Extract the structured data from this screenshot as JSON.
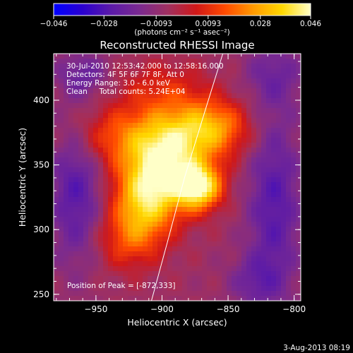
{
  "chart_data": {
    "type": "heatmap",
    "title": "Reconstructed RHESSI Image",
    "colorbar": {
      "ticks": [
        "−0.046",
        "−0.028",
        "−0.0093",
        "0.0093",
        "0.028",
        "0.046"
      ],
      "range": [
        -0.046,
        0.046
      ],
      "unit_label": "(photons cm⁻² s⁻¹ asec⁻²)",
      "colormap": [
        "#0000ff",
        "#2a00d0",
        "#5b1aa8",
        "#7a2a90",
        "#a03060",
        "#d01818",
        "#ff4a00",
        "#ff9a00",
        "#ffd800",
        "#ffffc8"
      ]
    },
    "xlabel": "Heliocentric X (arcsec)",
    "ylabel": "Heliocentric Y (arcsec)",
    "xlim": [
      -982,
      -795
    ],
    "ylim": [
      245,
      436
    ],
    "x_ticks": [
      {
        "value": -950,
        "label": "−950"
      },
      {
        "value": -900,
        "label": "−900"
      },
      {
        "value": -850,
        "label": "−850"
      },
      {
        "value": -800,
        "label": "−800"
      }
    ],
    "y_ticks": [
      {
        "value": 250,
        "label": "250"
      },
      {
        "value": 300,
        "label": "300"
      },
      {
        "value": 350,
        "label": "350"
      },
      {
        "value": 400,
        "label": "400"
      }
    ],
    "annotations": [
      "30-Jul-2010 12:53:42.000 to 12:58:16.000",
      "Detectors: 4F 5F 6F 7F 8F, Att 0",
      "Energy Range: 3.0 - 6.0 keV",
      "Clean     Total counts: 5.24E+04"
    ],
    "peak_label": "Position of Peak = [-872,333]",
    "peak": {
      "x": -872,
      "y": 333,
      "value": 0.046
    },
    "limb_curve": [
      [
        -908,
        245
      ],
      [
        -896,
        290
      ],
      [
        -883,
        340
      ],
      [
        -868,
        390
      ],
      [
        -854,
        436
      ]
    ],
    "sources": [
      {
        "x": -872,
        "y": 333,
        "amp": 0.046,
        "sx": 12,
        "sy": 12
      },
      {
        "x": -900,
        "y": 345,
        "amp": 0.042,
        "sx": 20,
        "sy": 22
      },
      {
        "x": -915,
        "y": 315,
        "amp": 0.03,
        "sx": 16,
        "sy": 22
      },
      {
        "x": -885,
        "y": 375,
        "amp": 0.028,
        "sx": 28,
        "sy": 18
      },
      {
        "x": -860,
        "y": 380,
        "amp": 0.018,
        "sx": 18,
        "sy": 14
      },
      {
        "x": -940,
        "y": 372,
        "amp": 0.016,
        "sx": 22,
        "sy": 16
      },
      {
        "x": -930,
        "y": 290,
        "amp": 0.012,
        "sx": 16,
        "sy": 16
      },
      {
        "x": -900,
        "y": 410,
        "amp": 0.012,
        "sx": 24,
        "sy": 14
      },
      {
        "x": -965,
        "y": 330,
        "amp": -0.02,
        "sx": 14,
        "sy": 40
      },
      {
        "x": -815,
        "y": 320,
        "amp": -0.02,
        "sx": 14,
        "sy": 50
      },
      {
        "x": -815,
        "y": 420,
        "amp": -0.012,
        "sx": 16,
        "sy": 18
      },
      {
        "x": -960,
        "y": 420,
        "amp": -0.014,
        "sx": 14,
        "sy": 12
      },
      {
        "x": -830,
        "y": 260,
        "amp": -0.012,
        "sx": 14,
        "sy": 14
      }
    ]
  },
  "footer": {
    "date": "3-Aug-2013 08:19"
  }
}
